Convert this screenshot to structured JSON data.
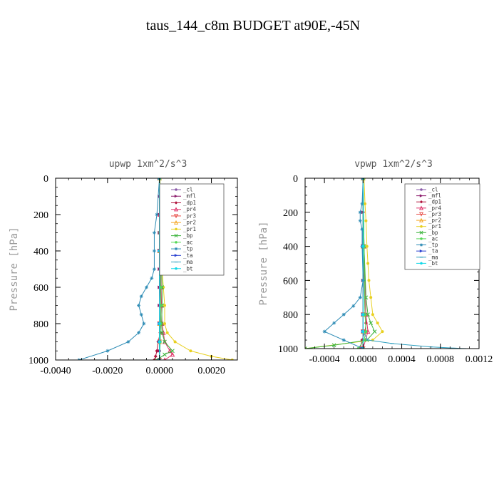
{
  "figure_title": "taus_144_c8m  BUDGET at90E,-45N",
  "legend_entries": [
    {
      "label": "_cl",
      "color": "#8a5aa8",
      "marker": "circle"
    },
    {
      "label": "_mfl",
      "color": "#8b1a6b",
      "marker": "tri-right"
    },
    {
      "label": "_dp1",
      "color": "#b0143c",
      "marker": "diamond"
    },
    {
      "label": "_pr4",
      "color": "#e0346a",
      "marker": "tri-up"
    },
    {
      "label": "_pr3",
      "color": "#e8504a",
      "marker": "tri-down"
    },
    {
      "label": "_pr2",
      "color": "#f5a623",
      "marker": "tri-up"
    },
    {
      "label": "_pr1",
      "color": "#e8d020",
      "marker": "circle"
    },
    {
      "label": "_bp",
      "color": "#3cb43c",
      "marker": "x"
    },
    {
      "label": "_ac",
      "color": "#55d855",
      "marker": "circle"
    },
    {
      "label": "_tp",
      "color": "#2a8ab4",
      "marker": "star"
    },
    {
      "label": "_ta",
      "color": "#2840d0",
      "marker": "tri-right"
    },
    {
      "label": "_ma",
      "color": "#30a0c0",
      "marker": "dash"
    },
    {
      "label": "_bt",
      "color": "#10d8e8",
      "marker": "circle"
    }
  ],
  "chart_data": [
    {
      "type": "line",
      "title": "upwp  1xm^2/s^3",
      "ylabel": "Pressure [hPa]",
      "xlabel": "",
      "xlim": [
        -0.004,
        0.003
      ],
      "ylim": [
        1000,
        0
      ],
      "xticks": [
        -0.004,
        -0.002,
        0.0,
        0.002
      ],
      "xtick_labels": [
        "-0.0040",
        "-0.0020",
        "0.0000",
        "0.0020"
      ],
      "yticks": [
        0,
        200,
        400,
        600,
        800,
        1000
      ],
      "ytick_labels": [
        "0",
        "200",
        "400",
        "600",
        "800",
        "1000"
      ],
      "legend_position": "top-right",
      "series": [
        {
          "name": "_cl",
          "y": [
            0,
            100,
            200,
            300,
            400,
            500,
            600,
            700,
            800,
            900,
            950,
            1000
          ],
          "x": [
            0,
            0,
            0,
            0,
            0,
            0,
            0,
            0,
            0,
            0,
            0,
            0
          ]
        },
        {
          "name": "_mfl",
          "y": [
            0,
            100,
            200,
            300,
            400,
            500,
            600,
            700,
            800,
            900,
            950,
            1000
          ],
          "x": [
            0,
            0,
            0,
            0,
            0,
            0,
            0,
            0,
            0,
            0,
            0,
            0
          ]
        },
        {
          "name": "_dp1",
          "y": [
            0,
            200,
            400,
            600,
            700,
            800,
            850,
            900,
            950,
            980,
            1000
          ],
          "x": [
            0,
            0,
            1e-05,
            3e-05,
            5e-05,
            5e-05,
            3e-05,
            -5e-05,
            -0.0001,
            -0.00015,
            -0.0002
          ]
        },
        {
          "name": "_pr4",
          "y": [
            0,
            200,
            400,
            600,
            700,
            800,
            850,
            900,
            950,
            970,
            1000
          ],
          "x": [
            0,
            2e-05,
            4e-05,
            6e-05,
            8e-05,
            0.0001,
            0.00015,
            0.0002,
            0.0004,
            0.0005,
            0.0002
          ]
        },
        {
          "name": "_pr3",
          "y": [
            0,
            400,
            800,
            900,
            1000
          ],
          "x": [
            0,
            0,
            0,
            0,
            0
          ]
        },
        {
          "name": "_pr2",
          "y": [
            0,
            400,
            800,
            900,
            1000
          ],
          "x": [
            0,
            0,
            0,
            0,
            0
          ]
        },
        {
          "name": "_pr1",
          "y": [
            0,
            300,
            500,
            600,
            700,
            800,
            850,
            900,
            950,
            980,
            1000
          ],
          "x": [
            2e-05,
            5e-05,
            0.0001,
            0.00015,
            0.0002,
            0.0002,
            0.0003,
            0.0006,
            0.0012,
            0.002,
            0.0028
          ]
        },
        {
          "name": "_bp",
          "y": [
            0,
            300,
            500,
            600,
            700,
            800,
            850,
            900,
            950,
            970,
            1000
          ],
          "x": [
            0,
            4e-05,
            8e-05,
            0.0001,
            0.0001,
            8e-05,
            0.0001,
            0.0002,
            0.0005,
            0.0002,
            -0.0001
          ]
        },
        {
          "name": "_ac",
          "y": [
            0,
            300,
            500,
            600,
            700,
            800,
            900,
            1000
          ],
          "x": [
            0,
            2e-05,
            3e-05,
            5e-05,
            5e-05,
            4e-05,
            3e-05,
            0.0
          ]
        },
        {
          "name": "_tp",
          "y": [
            0,
            200,
            300,
            400,
            500,
            550,
            600,
            650,
            700,
            750,
            800,
            850,
            900,
            950,
            1000
          ],
          "x": [
            0,
            -0.0001,
            -0.0002,
            -0.0002,
            -0.0002,
            -0.0003,
            -0.0005,
            -0.0007,
            -0.0008,
            -0.0007,
            -0.0006,
            -0.0008,
            -0.0012,
            -0.002,
            -0.0031
          ]
        },
        {
          "name": "_ta",
          "y": [
            0,
            400,
            800,
            900,
            1000
          ],
          "x": [
            0,
            0,
            0,
            0,
            0
          ]
        },
        {
          "name": "_ma",
          "y": [
            0,
            400,
            800,
            900,
            1000
          ],
          "x": [
            0,
            0,
            0,
            0,
            0
          ]
        },
        {
          "name": "_bt",
          "y": [
            0,
            400,
            800,
            900,
            1000
          ],
          "x": [
            0,
            0,
            0,
            0,
            0
          ]
        }
      ]
    },
    {
      "type": "line",
      "title": "vpwp  1xm^2/s^3",
      "ylabel": "Pressure [hPa]",
      "xlabel": "",
      "xlim": [
        -0.0006,
        0.0012
      ],
      "ylim": [
        1000,
        0
      ],
      "xticks": [
        -0.0004,
        0.0,
        0.0004,
        0.0008,
        0.0012
      ],
      "xtick_labels": [
        "-0.0004",
        "0.0000",
        "0.0004",
        "0.0008",
        "0.0012"
      ],
      "yticks": [
        0,
        200,
        400,
        600,
        800,
        1000
      ],
      "ytick_labels": [
        "0",
        "200",
        "400",
        "600",
        "800",
        "1000"
      ],
      "legend_position": "top-right",
      "series": [
        {
          "name": "_cl",
          "y": [
            0,
            200,
            400,
            600,
            800,
            900,
            1000
          ],
          "x": [
            0,
            0,
            0,
            0,
            0,
            0,
            0
          ]
        },
        {
          "name": "_mfl",
          "y": [
            0,
            200,
            400,
            600,
            800,
            900,
            1000
          ],
          "x": [
            0,
            0,
            0,
            0,
            0,
            0,
            0
          ]
        },
        {
          "name": "_dp1",
          "y": [
            0,
            200,
            400,
            600,
            800,
            850,
            900,
            950,
            1000
          ],
          "x": [
            0,
            0,
            0,
            1e-05,
            2e-05,
            3e-05,
            2e-05,
            -1e-05,
            -3e-05
          ]
        },
        {
          "name": "_pr4",
          "y": [
            0,
            400,
            800,
            900,
            1000
          ],
          "x": [
            0,
            1e-05,
            3e-05,
            5e-05,
            0.0
          ]
        },
        {
          "name": "_pr3",
          "y": [
            0,
            400,
            800,
            900,
            1000
          ],
          "x": [
            0,
            0,
            0,
            0,
            0
          ]
        },
        {
          "name": "_pr2",
          "y": [
            0,
            400,
            800,
            900,
            1000
          ],
          "x": [
            0,
            0,
            0,
            0,
            0
          ]
        },
        {
          "name": "_pr1",
          "y": [
            0,
            150,
            250,
            400,
            500,
            600,
            700,
            800,
            850,
            900,
            950,
            1000
          ],
          "x": [
            1e-05,
            2e-05,
            3e-05,
            4e-05,
            5e-05,
            6e-05,
            8e-05,
            0.0001,
            0.00015,
            0.0002,
            0.0001,
            -0.0006
          ]
        },
        {
          "name": "_bp",
          "y": [
            0,
            400,
            700,
            800,
            850,
            900,
            950,
            980,
            1000
          ],
          "x": [
            0,
            1e-05,
            3e-05,
            5e-05,
            8e-05,
            0.00012,
            4e-05,
            -0.0003,
            -0.0006
          ]
        },
        {
          "name": "_ac",
          "y": [
            0,
            400,
            800,
            900,
            950,
            1000
          ],
          "x": [
            0,
            1e-05,
            2e-05,
            3e-05,
            1e-05,
            -5e-05
          ]
        },
        {
          "name": "_tp",
          "y": [
            0,
            150,
            200,
            250,
            300,
            400,
            600,
            700,
            750,
            800,
            850,
            900,
            950,
            1000
          ],
          "x": [
            0,
            -1e-05,
            -3e-05,
            -3e-05,
            -1e-05,
            -1e-05,
            0.0,
            -3e-05,
            -0.0001,
            -0.0002,
            -0.0003,
            -0.0004,
            -0.0002,
            0.0
          ]
        },
        {
          "name": "_ta",
          "y": [
            0,
            400,
            800,
            900,
            1000
          ],
          "x": [
            0,
            0,
            0,
            0,
            0
          ]
        },
        {
          "name": "_ma",
          "y": [
            0,
            400,
            800,
            900,
            950,
            970,
            990,
            1000
          ],
          "x": [
            0,
            0,
            0,
            0,
            5e-05,
            0.0003,
            0.0007,
            0.00105
          ]
        },
        {
          "name": "_bt",
          "y": [
            0,
            400,
            800,
            900,
            1000
          ],
          "x": [
            0,
            0,
            0,
            0,
            0
          ]
        }
      ]
    }
  ]
}
